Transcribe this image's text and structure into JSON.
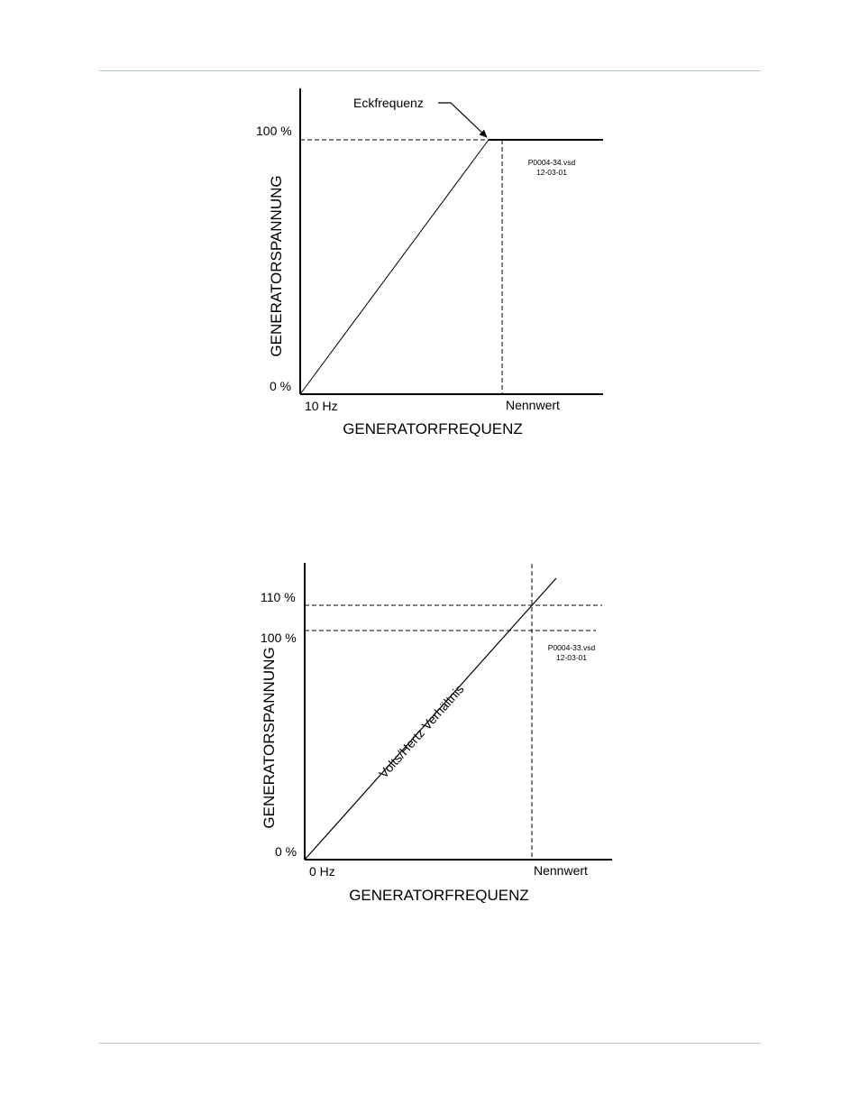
{
  "colors": {
    "rule": "#b8c8dc",
    "ink": "#000000"
  },
  "diagrams": [
    {
      "ylabel": "GENERATORSPANNUNG",
      "xlabel": "GENERATORFREQUENZ",
      "y_ticks": [
        "100 %",
        "0 %"
      ],
      "x_ticks": [
        "10 Hz",
        "Nennwert"
      ],
      "callout": "Eckfrequenz",
      "stamp": [
        "P0004-34.vsd",
        "12-03-01"
      ]
    },
    {
      "ylabel": "GENERATORSPANNUNG",
      "xlabel": "GENERATORFREQUENZ",
      "y_ticks": [
        "110 %",
        "100 %",
        "0 %"
      ],
      "x_ticks": [
        "0 Hz",
        "Nennwert"
      ],
      "line_label": "Volts/Hertz Verhältnis",
      "stamp": [
        "P0004-33.vsd",
        "12-03-01"
      ]
    }
  ]
}
